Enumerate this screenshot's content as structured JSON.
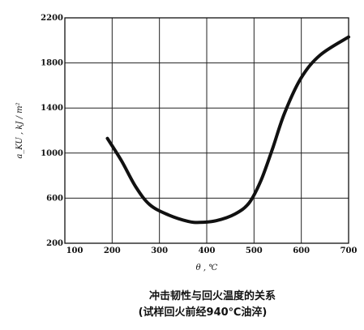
{
  "chart_data": {
    "type": "line",
    "title": "冲击韧性与回火温度的关系",
    "subtitle": "(试样回火前经940℃油淬)",
    "xlabel": "θ , ℃",
    "ylabel": "a_KU , kJ / m²",
    "xlim": [
      100,
      700
    ],
    "ylim": [
      200,
      2200
    ],
    "xticks": [
      "100",
      "200",
      "300",
      "400",
      "500",
      "600",
      "700"
    ],
    "yticks": [
      "200",
      "600",
      "1000",
      "1400",
      "1800",
      "2200"
    ],
    "grid": true,
    "series": [
      {
        "values": [
          {
            "x": 190,
            "y": 1130
          },
          {
            "x": 220,
            "y": 930
          },
          {
            "x": 250,
            "y": 700
          },
          {
            "x": 280,
            "y": 540
          },
          {
            "x": 320,
            "y": 450
          },
          {
            "x": 360,
            "y": 395
          },
          {
            "x": 385,
            "y": 385
          },
          {
            "x": 420,
            "y": 400
          },
          {
            "x": 460,
            "y": 460
          },
          {
            "x": 490,
            "y": 560
          },
          {
            "x": 515,
            "y": 760
          },
          {
            "x": 540,
            "y": 1050
          },
          {
            "x": 565,
            "y": 1360
          },
          {
            "x": 600,
            "y": 1670
          },
          {
            "x": 640,
            "y": 1870
          },
          {
            "x": 700,
            "y": 2030
          }
        ]
      }
    ]
  }
}
